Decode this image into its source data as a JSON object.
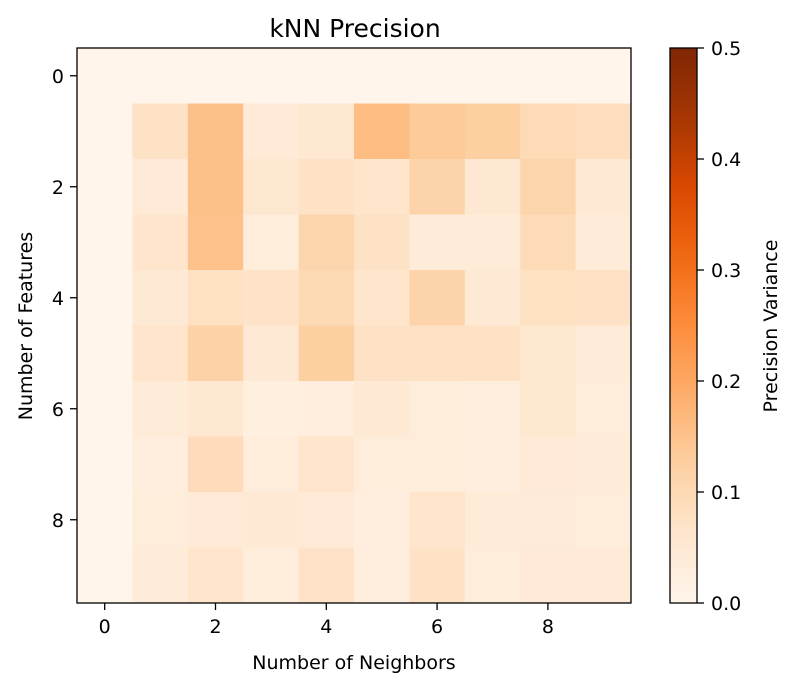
{
  "chart_data": {
    "type": "heatmap",
    "title": "kNN Precision",
    "xlabel": "Number of Neighbors",
    "ylabel": "Number of Features",
    "x_ticks": [
      0,
      2,
      4,
      6,
      8
    ],
    "y_ticks": [
      0,
      2,
      4,
      6,
      8
    ],
    "x": [
      0,
      1,
      2,
      3,
      4,
      5,
      6,
      7,
      8,
      9
    ],
    "y": [
      0,
      1,
      2,
      3,
      4,
      5,
      6,
      7,
      8,
      9
    ],
    "xlim": [
      -0.5,
      9.5
    ],
    "ylim": [
      9.5,
      -0.5
    ],
    "colormap": "Oranges",
    "colorbar": {
      "label": "Precision Variance",
      "min": 0.0,
      "max": 0.5,
      "ticks": [
        0.0,
        0.1,
        0.2,
        0.3,
        0.4,
        0.5
      ],
      "tick_labels": [
        "0.0",
        "0.1",
        "0.2",
        "0.3",
        "0.4",
        "0.5"
      ]
    },
    "values": [
      [
        0.0,
        0.0,
        0.0,
        0.0,
        0.0,
        0.0,
        0.0,
        0.0,
        0.0,
        0.0
      ],
      [
        0.0,
        0.075,
        0.155,
        0.045,
        0.055,
        0.16,
        0.135,
        0.125,
        0.095,
        0.085
      ],
      [
        0.0,
        0.045,
        0.155,
        0.06,
        0.075,
        0.065,
        0.115,
        0.055,
        0.11,
        0.05
      ],
      [
        0.0,
        0.065,
        0.15,
        0.035,
        0.11,
        0.075,
        0.04,
        0.04,
        0.095,
        0.04
      ],
      [
        0.0,
        0.05,
        0.08,
        0.07,
        0.1,
        0.065,
        0.115,
        0.05,
        0.08,
        0.075
      ],
      [
        0.0,
        0.065,
        0.12,
        0.05,
        0.125,
        0.075,
        0.075,
        0.075,
        0.06,
        0.04
      ],
      [
        0.0,
        0.04,
        0.055,
        0.025,
        0.03,
        0.05,
        0.035,
        0.03,
        0.06,
        0.035
      ],
      [
        0.0,
        0.03,
        0.09,
        0.035,
        0.065,
        0.035,
        0.035,
        0.03,
        0.045,
        0.04
      ],
      [
        0.0,
        0.035,
        0.045,
        0.05,
        0.045,
        0.03,
        0.065,
        0.04,
        0.04,
        0.035
      ],
      [
        0.0,
        0.04,
        0.065,
        0.035,
        0.07,
        0.03,
        0.075,
        0.035,
        0.045,
        0.045
      ]
    ]
  }
}
